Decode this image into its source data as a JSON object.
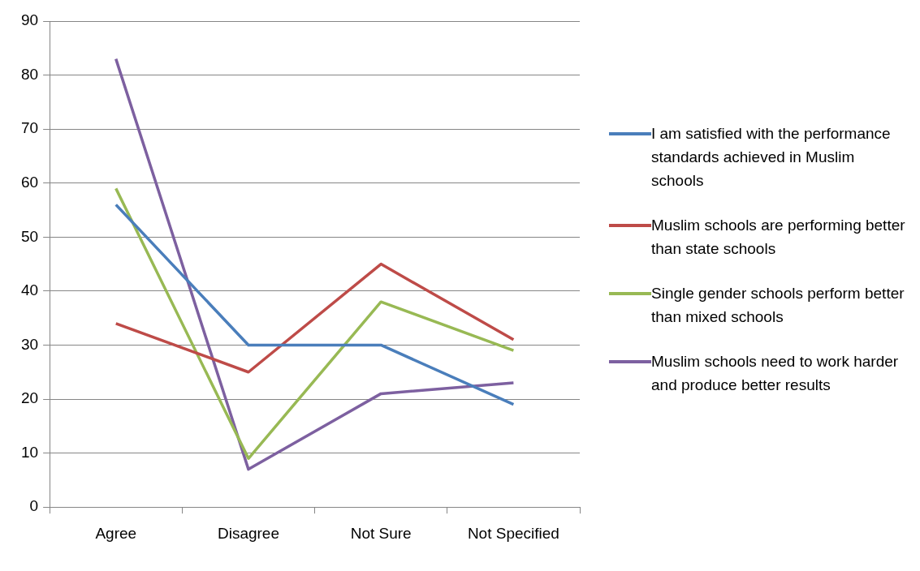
{
  "chart_data": {
    "type": "line",
    "categories": [
      "Agree",
      "Disagree",
      "Not Sure",
      "Not Specified"
    ],
    "series": [
      {
        "name": "I am satisfied with the performance standards achieved in Muslim  schools",
        "color": "#4a7ebb",
        "values": [
          56,
          30,
          30,
          19
        ]
      },
      {
        "name": "Muslim schools are performing better than state schools",
        "color": "#be4b48",
        "values": [
          34,
          25,
          45,
          31
        ]
      },
      {
        "name": "Single gender schools perform better than mixed schools",
        "color": "#98b954",
        "values": [
          59,
          9,
          38,
          29
        ]
      },
      {
        "name": "Muslim schools need to work harder and produce better results",
        "color": "#7d60a0",
        "values": [
          83,
          7,
          21,
          23
        ]
      }
    ],
    "ylim": [
      0,
      90
    ],
    "yticks": [
      0,
      10,
      20,
      30,
      40,
      50,
      60,
      70,
      80,
      90
    ],
    "grid": "y",
    "legend": "right",
    "marker": "none",
    "line_style": "solid"
  }
}
